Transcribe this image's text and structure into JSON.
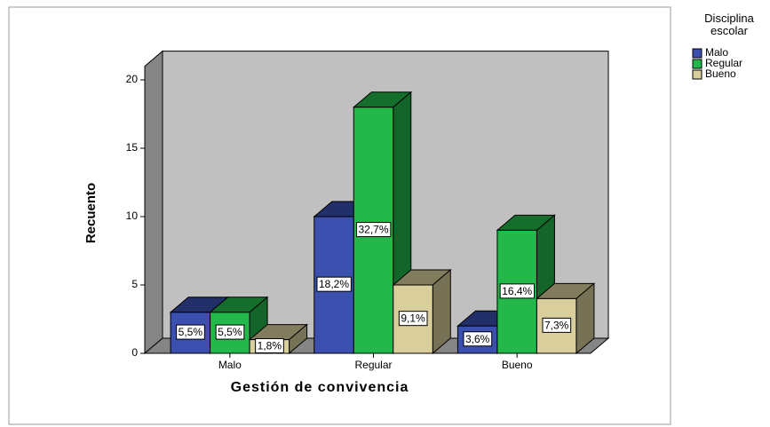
{
  "chart_data": {
    "type": "bar3d",
    "xlabel": "Gestión de convivencia",
    "ylabel": "Recuento",
    "legend_title": "Disciplina escolar",
    "categories": [
      "Malo",
      "Regular",
      "Bueno"
    ],
    "series": [
      {
        "name": "Malo",
        "color": "#3b4fae",
        "values": [
          3,
          10,
          2
        ],
        "value_labels": [
          "5,5%",
          "18,2%",
          "3,6%"
        ]
      },
      {
        "name": "Regular",
        "color": "#23b84a",
        "values": [
          3,
          18,
          9
        ],
        "value_labels": [
          "5,5%",
          "32,7%",
          "16,4%"
        ]
      },
      {
        "name": "Bueno",
        "color": "#d8cf9c",
        "values": [
          1,
          5,
          4
        ],
        "value_labels": [
          "1,8%",
          "9,1%",
          "7,3%"
        ]
      }
    ],
    "ylim": [
      0,
      21
    ],
    "yticks": [
      0,
      5,
      10,
      15,
      20
    ]
  }
}
